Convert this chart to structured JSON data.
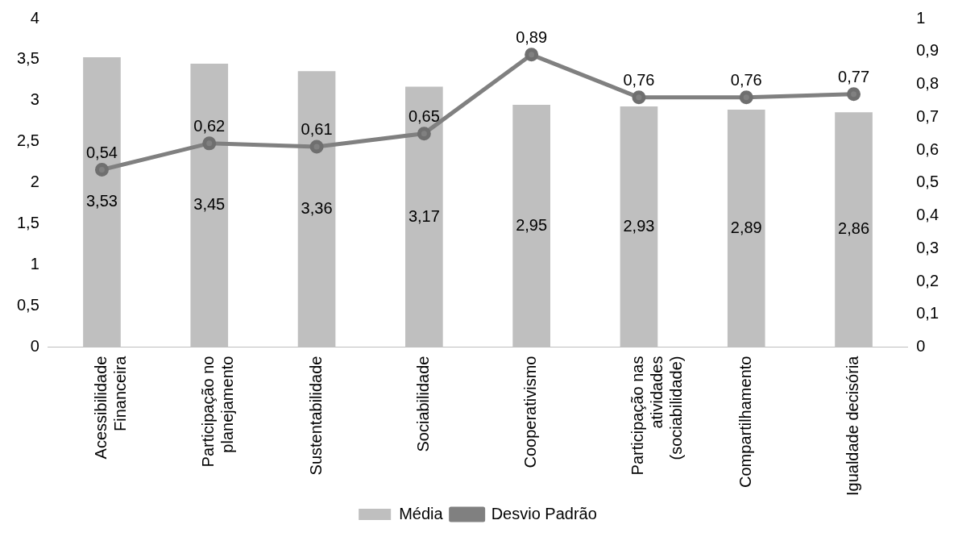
{
  "chart_data": {
    "type": "bar",
    "categories": [
      "Acessibilidade Financeira",
      "Participação no planejamento",
      "Sustentabilidade",
      "Sociabilidade",
      "Cooperativismo",
      "Participação nas atividades (sociabilidade)",
      "Compartilhamento",
      "Igualdade decisória"
    ],
    "series": [
      {
        "name": "Média",
        "color": "#bfbfbf",
        "values": [
          3.53,
          3.45,
          3.36,
          3.17,
          2.95,
          2.93,
          2.89,
          2.86
        ],
        "value_labels": [
          "3,53",
          "3,45",
          "3,36",
          "3,17",
          "2,95",
          "2,93",
          "2,89",
          "2,86"
        ]
      },
      {
        "name": "Desvio Padrão",
        "type": "line",
        "axis": "y2",
        "color": "#808080",
        "marker": "circle",
        "values": [
          0.54,
          0.62,
          0.61,
          0.65,
          0.89,
          0.76,
          0.76,
          0.77
        ],
        "value_labels": [
          "0,54",
          "0,62",
          "0,61",
          "0,65",
          "0,89",
          "0,76",
          "0,76",
          "0,77"
        ]
      }
    ],
    "ylim": [
      0,
      4
    ],
    "yticks": [
      0,
      {
        "value": 0.5,
        "label": "0,5"
      },
      1,
      {
        "value": 1.5,
        "label": "1,5"
      },
      2,
      {
        "value": 2.5,
        "label": "2,5"
      },
      3,
      {
        "value": 3.5,
        "label": "3,5"
      },
      4
    ],
    "y2lim": [
      0,
      1
    ],
    "y2ticks": [
      0,
      {
        "value": 0.1,
        "label": "0,1"
      },
      {
        "value": 0.2,
        "label": "0,2"
      },
      {
        "value": 0.3,
        "label": "0,3"
      },
      {
        "value": 0.4,
        "label": "0,4"
      },
      {
        "value": 0.5,
        "label": "0,5"
      },
      {
        "value": 0.6,
        "label": "0,6"
      },
      {
        "value": 0.7,
        "label": "0,7"
      },
      {
        "value": 0.8,
        "label": "0,8"
      },
      {
        "value": 0.9,
        "label": "0,9"
      },
      1
    ],
    "grid": false,
    "legend": "bottom"
  }
}
